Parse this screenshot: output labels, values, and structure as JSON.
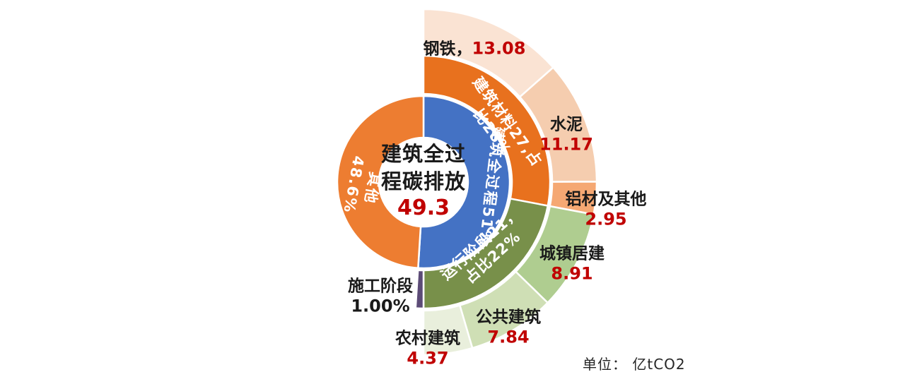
{
  "chart_data": {
    "type": "sunburst",
    "title": "建筑全过程碳排放",
    "unit_label": "单位： 亿tCO2",
    "accent_red": "#C00000",
    "center": {
      "title_line1": "建筑全过",
      "title_line2": "程碳排放",
      "value": "49.3",
      "total": 49.3
    },
    "inner_ring": [
      {
        "key": "building-full-process",
        "name": "建筑全过程",
        "pct": 51,
        "label": "建筑全过程51%",
        "color": "#4472C4"
      },
      {
        "key": "other-emissions",
        "name": "其他",
        "pct": 48.6,
        "label_line1": "其他",
        "label_line2": "48.6%",
        "color": "#ED7D31"
      }
    ],
    "middle_ring": [
      {
        "key": "building-materials",
        "name": "建筑材料",
        "value": 27,
        "pct": 28,
        "label_line1": "建筑材料27,占",
        "label_line2": "比28%",
        "color": "#E8711E"
      },
      {
        "key": "operation-phase",
        "name": "运行阶段",
        "value": 21,
        "pct": 22,
        "label_line1": "运行阶段21，",
        "label_line2": "占比22%",
        "color": "#78904A"
      },
      {
        "key": "construction-phase",
        "name": "施工阶段",
        "value": 1,
        "pct": 1,
        "label": "施工阶段",
        "value_text": "1.00%",
        "color": "#5C4B77"
      }
    ],
    "outer_ring": [
      {
        "key": "steel",
        "group": "materials",
        "label": "钢铁，",
        "value": 13.08,
        "value_text": "13.08",
        "color": "#FAE3D3"
      },
      {
        "key": "cement",
        "group": "materials",
        "label": "水泥",
        "value": 11.17,
        "value_text": "11.17",
        "color": "#F5CDAF"
      },
      {
        "key": "aluminum-and-others",
        "group": "materials",
        "label": "铝材及其他",
        "value": 2.95,
        "value_text": "2.95",
        "color": "#F5A873"
      },
      {
        "key": "urban-residential",
        "group": "operation",
        "label": "城镇居建",
        "value": 8.91,
        "value_text": "8.91",
        "color": "#AFCD90"
      },
      {
        "key": "public-buildings",
        "group": "operation",
        "label": "公共建筑",
        "value": 7.84,
        "value_text": "7.84",
        "color": "#CFDFB5"
      },
      {
        "key": "rural-buildings",
        "group": "operation",
        "label": "农村建筑",
        "value": 4.37,
        "value_text": "4.37",
        "color": "#E9EFDC"
      }
    ]
  }
}
